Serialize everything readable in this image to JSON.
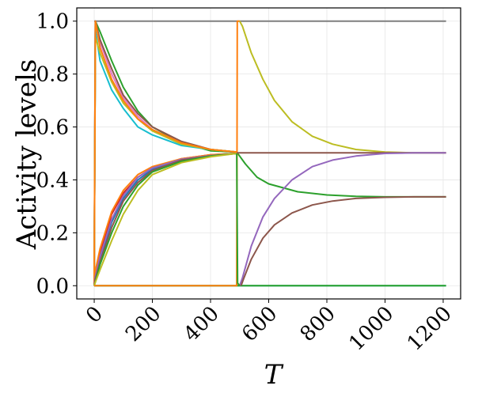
{
  "chart_data": {
    "type": "line",
    "title": "",
    "xlabel": "T",
    "ylabel": "Activity levels",
    "xlim": [
      -60,
      1260
    ],
    "ylim": [
      -0.05,
      1.05
    ],
    "xticks": [
      0,
      200,
      400,
      600,
      800,
      1000,
      1200
    ],
    "xtick_labels": [
      "0",
      "200",
      "400",
      "600",
      "800",
      "1000",
      "1200"
    ],
    "yticks": [
      0.0,
      0.2,
      0.4,
      0.6,
      0.8,
      1.0
    ],
    "ytick_labels": [
      "0.0",
      "0.2",
      "0.4",
      "0.6",
      "0.8",
      "1.0"
    ],
    "grid": true,
    "series": [
      {
        "color": "#7f7f7f",
        "x": [
          0,
          1210
        ],
        "y": [
          1.0,
          1.0
        ]
      },
      {
        "color": "#17becf",
        "x": [
          0,
          1210
        ],
        "y": [
          0.0,
          0.0
        ]
      },
      {
        "color": "#2ca02c",
        "x": [
          0,
          490,
          490,
          1210
        ],
        "y": [
          0.0,
          0.0,
          0.0,
          0.0
        ]
      },
      {
        "color": "#2ca02c",
        "x": [
          0,
          4,
          20,
          60,
          100,
          150,
          200,
          300,
          400,
          490,
          520,
          560,
          600,
          700,
          800,
          900,
          1000,
          1100,
          1210
        ],
        "y": [
          0.0,
          1.0,
          0.96,
          0.85,
          0.75,
          0.66,
          0.6,
          0.54,
          0.51,
          0.505,
          0.46,
          0.41,
          0.385,
          0.355,
          0.343,
          0.338,
          0.336,
          0.336,
          0.336
        ]
      },
      {
        "color": "#e377c2",
        "x": [
          0,
          4,
          20,
          60,
          100,
          150,
          200,
          300,
          400,
          490
        ],
        "y": [
          0.0,
          1.0,
          0.92,
          0.8,
          0.71,
          0.64,
          0.59,
          0.54,
          0.515,
          0.505
        ]
      },
      {
        "color": "#8c564b",
        "x": [
          0,
          4,
          20,
          60,
          100,
          150,
          200,
          300,
          400,
          490
        ],
        "y": [
          0.0,
          1.0,
          0.93,
          0.82,
          0.72,
          0.65,
          0.6,
          0.545,
          0.515,
          0.505
        ]
      },
      {
        "color": "#17becf",
        "x": [
          0,
          4,
          20,
          60,
          100,
          150,
          200,
          300,
          400,
          490
        ],
        "y": [
          0.0,
          0.97,
          0.85,
          0.74,
          0.67,
          0.6,
          0.57,
          0.53,
          0.515,
          0.505
        ]
      },
      {
        "color": "#bcbd22",
        "x": [
          0,
          4,
          20,
          60,
          100,
          150,
          200,
          300,
          400,
          490
        ],
        "y": [
          0.0,
          0.94,
          0.88,
          0.77,
          0.69,
          0.63,
          0.585,
          0.535,
          0.515,
          0.505
        ]
      },
      {
        "color": "#ff7f0e",
        "x": [
          0,
          4,
          20,
          60,
          100,
          150,
          200,
          300,
          400,
          490
        ],
        "y": [
          0.0,
          1.0,
          0.9,
          0.78,
          0.7,
          0.63,
          0.59,
          0.54,
          0.515,
          0.505
        ]
      },
      {
        "color": "#d62728",
        "x": [
          0,
          3,
          20,
          60,
          100,
          150,
          200,
          300,
          400,
          490
        ],
        "y": [
          0.0,
          0.02,
          0.12,
          0.27,
          0.35,
          0.41,
          0.445,
          0.48,
          0.495,
          0.5
        ]
      },
      {
        "color": "#1f77b4",
        "x": [
          0,
          3,
          20,
          60,
          100,
          150,
          200,
          300,
          400,
          490
        ],
        "y": [
          0.0,
          0.02,
          0.1,
          0.24,
          0.33,
          0.4,
          0.44,
          0.475,
          0.49,
          0.5
        ]
      },
      {
        "color": "#ff7f0e",
        "x": [
          0,
          3,
          20,
          60,
          100,
          150,
          200,
          300,
          400,
          490
        ],
        "y": [
          0.0,
          0.05,
          0.14,
          0.28,
          0.36,
          0.42,
          0.45,
          0.48,
          0.495,
          0.5
        ]
      },
      {
        "color": "#9467bd",
        "x": [
          0,
          3,
          20,
          60,
          100,
          150,
          200,
          300,
          400,
          490
        ],
        "y": [
          0.0,
          0.03,
          0.11,
          0.25,
          0.34,
          0.41,
          0.445,
          0.478,
          0.492,
          0.5
        ]
      },
      {
        "color": "#8c564b",
        "x": [
          0,
          3,
          20,
          60,
          100,
          150,
          200,
          300,
          400,
          490
        ],
        "y": [
          0.0,
          0.02,
          0.09,
          0.22,
          0.32,
          0.39,
          0.435,
          0.475,
          0.49,
          0.5
        ]
      },
      {
        "color": "#2ca02c",
        "x": [
          0,
          3,
          20,
          60,
          100,
          150,
          200,
          300,
          400,
          490
        ],
        "y": [
          0.0,
          0.01,
          0.08,
          0.2,
          0.3,
          0.38,
          0.43,
          0.47,
          0.49,
          0.5
        ]
      },
      {
        "color": "#bcbd22",
        "x": [
          0,
          3,
          20,
          60,
          100,
          150,
          200,
          300,
          400,
          490
        ],
        "y": [
          0.0,
          0.01,
          0.06,
          0.17,
          0.27,
          0.36,
          0.42,
          0.465,
          0.487,
          0.5
        ]
      },
      {
        "color": "#ff7f0e",
        "x": [
          0,
          490,
          492,
          500
        ],
        "y": [
          0.0,
          0.0,
          1.0,
          1.0
        ]
      },
      {
        "color": "#bcbd22",
        "x": [
          500,
          510,
          540,
          580,
          620,
          680,
          750,
          820,
          900,
          1000,
          1100,
          1210
        ],
        "y": [
          1.0,
          0.98,
          0.88,
          0.78,
          0.7,
          0.62,
          0.565,
          0.535,
          0.515,
          0.505,
          0.502,
          0.502
        ]
      },
      {
        "color": "#8c564b",
        "x": [
          490,
          1210
        ],
        "y": [
          0.502,
          0.502
        ]
      },
      {
        "color": "#9467bd",
        "x": [
          500,
          510,
          540,
          580,
          620,
          680,
          750,
          820,
          900,
          1000,
          1100,
          1210
        ],
        "y": [
          0.0,
          0.03,
          0.15,
          0.26,
          0.33,
          0.4,
          0.45,
          0.475,
          0.49,
          0.5,
          0.502,
          0.502
        ]
      },
      {
        "color": "#8c564b",
        "x": [
          505,
          515,
          540,
          580,
          620,
          680,
          750,
          820,
          900,
          1000,
          1100,
          1210
        ],
        "y": [
          0.0,
          0.03,
          0.1,
          0.18,
          0.23,
          0.275,
          0.305,
          0.32,
          0.33,
          0.334,
          0.336,
          0.336
        ]
      },
      {
        "color": "#2ca02c",
        "x": [
          490,
          493,
          500
        ],
        "y": [
          0.5,
          0.01,
          0.0
        ]
      }
    ]
  }
}
